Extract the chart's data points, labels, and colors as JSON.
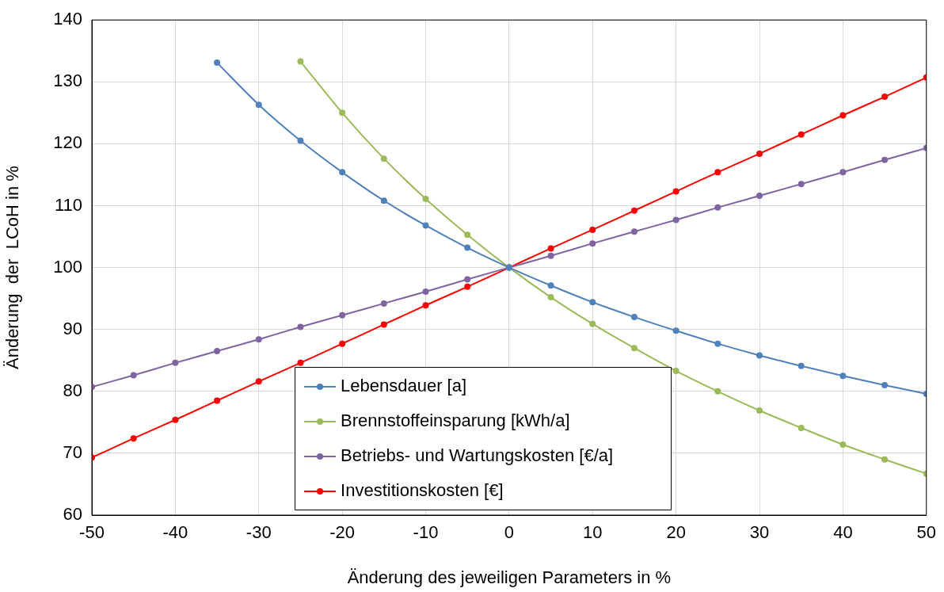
{
  "chart_data": {
    "type": "line",
    "xlabel": "Änderung des jeweiligen Parameters in %",
    "ylabel": "Änderung  der  LCoH in %",
    "x": [
      -50,
      -45,
      -40,
      -35,
      -30,
      -25,
      -20,
      -15,
      -10,
      -5,
      0,
      5,
      10,
      15,
      20,
      25,
      30,
      35,
      40,
      45,
      50
    ],
    "series": [
      {
        "name": "Lebensdauer [a]",
        "color": "#4f81bd",
        "values": [
          null,
          null,
          null,
          133.1,
          126.3,
          120.5,
          115.4,
          110.8,
          106.8,
          103.2,
          100,
          97.1,
          94.4,
          92.0,
          89.8,
          87.7,
          85.8,
          84.1,
          82.5,
          81.0,
          79.6
        ]
      },
      {
        "name": "Brennstoffeinsparung [kWh/a]",
        "color": "#9bbb59",
        "values": [
          null,
          null,
          null,
          null,
          null,
          133.3,
          125.0,
          117.6,
          111.1,
          105.3,
          100,
          95.2,
          90.9,
          87.0,
          83.3,
          80.0,
          76.9,
          74.1,
          71.4,
          69.0,
          66.7
        ]
      },
      {
        "name": "Betriebs- und Wartungskosten [€/a]",
        "color": "#8064a2",
        "values": [
          80.7,
          82.6,
          84.6,
          86.5,
          88.4,
          90.4,
          92.3,
          94.2,
          96.1,
          98.1,
          100,
          101.9,
          103.9,
          105.8,
          107.7,
          109.7,
          111.6,
          113.5,
          115.4,
          117.4,
          119.3
        ]
      },
      {
        "name": "Investitionskosten [€]",
        "color": "#ff0000",
        "values": [
          69.3,
          72.4,
          75.4,
          78.5,
          81.6,
          84.6,
          87.7,
          90.8,
          93.9,
          96.9,
          100,
          103.1,
          106.1,
          109.2,
          112.3,
          115.4,
          118.4,
          121.5,
          124.6,
          127.6,
          130.7
        ]
      }
    ],
    "xlim": [
      -50,
      50
    ],
    "xticks": [
      -50,
      -40,
      -30,
      -20,
      -10,
      0,
      10,
      20,
      30,
      40,
      50
    ],
    "ylim": [
      60,
      140
    ],
    "yticks": [
      60,
      70,
      80,
      90,
      100,
      110,
      120,
      130,
      140
    ],
    "grid": true,
    "legend": "bottom",
    "marker": "circle",
    "line_style": "solid"
  }
}
